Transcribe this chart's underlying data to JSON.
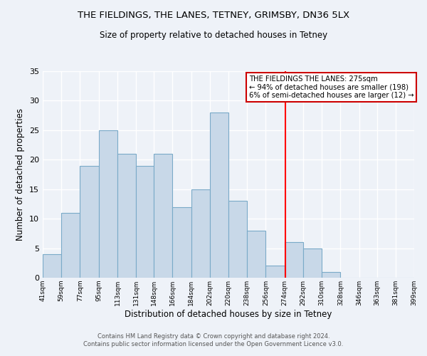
{
  "title": "THE FIELDINGS, THE LANES, TETNEY, GRIMSBY, DN36 5LX",
  "subtitle": "Size of property relative to detached houses in Tetney",
  "xlabel": "Distribution of detached houses by size in Tetney",
  "ylabel": "Number of detached properties",
  "bin_edges": [
    41,
    59,
    77,
    95,
    113,
    131,
    148,
    166,
    184,
    202,
    220,
    238,
    256,
    274,
    292,
    310,
    328,
    346,
    363,
    381,
    399
  ],
  "bar_heights": [
    4,
    11,
    19,
    25,
    21,
    19,
    21,
    12,
    15,
    28,
    13,
    8,
    2,
    6,
    5,
    1,
    0,
    0,
    0,
    0
  ],
  "bar_color": "#c8d8e8",
  "bar_edge_color": "#7aaac8",
  "reference_line_x": 275,
  "ylim": [
    0,
    35
  ],
  "yticks": [
    0,
    5,
    10,
    15,
    20,
    25,
    30,
    35
  ],
  "annotation_title": "THE FIELDINGS THE LANES: 275sqm",
  "annotation_line1": "← 94% of detached houses are smaller (198)",
  "annotation_line2": "6% of semi-detached houses are larger (12) →",
  "annotation_box_color": "#ffffff",
  "annotation_box_edge_color": "#cc0000",
  "footer_line1": "Contains HM Land Registry data © Crown copyright and database right 2024.",
  "footer_line2": "Contains public sector information licensed under the Open Government Licence v3.0.",
  "background_color": "#eef2f8",
  "tick_labels": [
    "41sqm",
    "59sqm",
    "77sqm",
    "95sqm",
    "113sqm",
    "131sqm",
    "148sqm",
    "166sqm",
    "184sqm",
    "202sqm",
    "220sqm",
    "238sqm",
    "256sqm",
    "274sqm",
    "292sqm",
    "310sqm",
    "328sqm",
    "346sqm",
    "363sqm",
    "381sqm",
    "399sqm"
  ],
  "title_fontsize": 9.5,
  "subtitle_fontsize": 8.5,
  "xlabel_fontsize": 8.5,
  "ylabel_fontsize": 8.5
}
